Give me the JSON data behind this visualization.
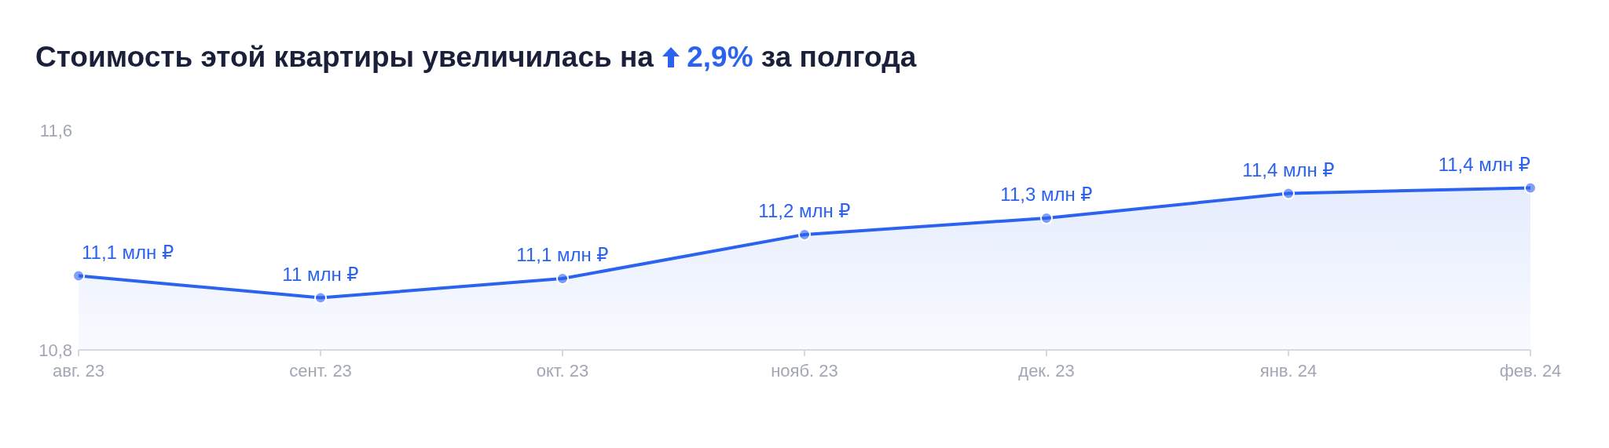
{
  "chart_data": {
    "type": "area",
    "title": "Стоимость этой квартиры увеличилась на 2,9% за полгода",
    "categories": [
      "авг. 23",
      "сент. 23",
      "окт. 23",
      "нояб. 23",
      "дек. 23",
      "янв. 24",
      "фев. 24"
    ],
    "values": [
      11.07,
      10.99,
      11.06,
      11.22,
      11.28,
      11.37,
      11.39
    ],
    "value_labels": [
      "11,1 млн ₽",
      "11 млн ₽",
      "11,1 млн ₽",
      "11,2 млн ₽",
      "11,3 млн ₽",
      "11,4 млн ₽",
      "11,4 млн ₽"
    ],
    "color": "#2b63f0",
    "ylim": [
      10.8,
      11.6
    ],
    "yticks": [
      {
        "value": 10.8,
        "label": "10,8"
      },
      {
        "value": 11.6,
        "label": "11,6"
      }
    ],
    "marker": "circle"
  }
}
